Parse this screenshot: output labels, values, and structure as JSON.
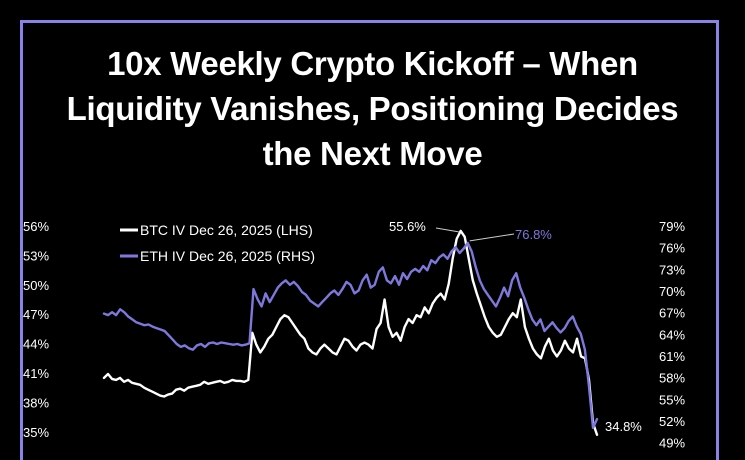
{
  "title": "10x Weekly Crypto Kickoff – When Liquidity Vanishes, Positioning Decides the Next Move",
  "colors": {
    "background": "#000000",
    "frame": "#8a82e6",
    "btc": "#ffffff",
    "eth": "#7f78dc"
  },
  "chart_data": {
    "type": "line",
    "grid": false,
    "legend_position": "top-left",
    "yaxis_left": {
      "ticks": [
        "56%",
        "53%",
        "50%",
        "47%",
        "44%",
        "41%",
        "38%",
        "35%"
      ],
      "values": [
        56,
        53,
        50,
        47,
        44,
        41,
        38,
        35
      ]
    },
    "yaxis_right": {
      "ticks": [
        "79%",
        "76%",
        "73%",
        "70%",
        "67%",
        "64%",
        "61%",
        "58%",
        "55%",
        "52%",
        "49%"
      ],
      "values": [
        79,
        76,
        73,
        70,
        67,
        64,
        61,
        58,
        55,
        52,
        49
      ]
    },
    "series": [
      {
        "name": "BTC IV Dec 26, 2025 (LHS)",
        "axis": "left",
        "values": [
          40.6,
          41.0,
          40.5,
          40.4,
          40.6,
          40.2,
          40.4,
          40.1,
          40.0,
          39.9,
          39.6,
          39.4,
          39.2,
          39.0,
          38.8,
          38.7,
          38.9,
          39.0,
          39.4,
          39.5,
          39.3,
          39.6,
          39.7,
          39.8,
          39.9,
          40.2,
          40.0,
          40.1,
          40.2,
          40.3,
          40.1,
          40.2,
          40.4,
          40.3,
          40.3,
          40.2,
          40.4,
          45.2,
          44.0,
          43.2,
          43.8,
          44.6,
          45.0,
          45.8,
          46.6,
          47.0,
          46.8,
          46.2,
          45.6,
          45.0,
          44.6,
          43.6,
          43.2,
          43.0,
          43.6,
          44.0,
          43.6,
          43.2,
          43.0,
          43.8,
          44.6,
          44.4,
          43.8,
          43.4,
          44.0,
          44.2,
          44.0,
          43.6,
          45.6,
          46.2,
          48.6,
          45.8,
          44.8,
          45.2,
          44.4,
          45.8,
          46.6,
          46.2,
          47.0,
          46.8,
          47.8,
          47.2,
          48.2,
          48.8,
          49.2,
          48.6,
          50.2,
          52.8,
          54.8,
          55.6,
          55.0,
          52.8,
          50.6,
          49.2,
          48.0,
          46.8,
          45.8,
          45.2,
          44.8,
          45.0,
          45.8,
          46.6,
          47.2,
          46.8,
          48.6,
          45.8,
          44.6,
          43.6,
          43.0,
          42.6,
          43.8,
          44.6,
          43.4,
          42.8,
          43.4,
          44.4,
          43.6,
          43.2,
          44.6,
          42.8,
          42.6,
          40.4,
          36.0,
          34.8
        ]
      },
      {
        "name": "ETH IV Dec 26, 2025 (RHS)",
        "axis": "right",
        "values": [
          67.0,
          66.8,
          67.2,
          66.8,
          67.6,
          67.2,
          66.6,
          66.2,
          65.8,
          65.6,
          65.4,
          65.5,
          65.2,
          65.0,
          64.8,
          64.6,
          64.0,
          63.4,
          62.8,
          62.4,
          62.6,
          62.2,
          62.0,
          62.6,
          62.8,
          62.4,
          62.9,
          63.0,
          62.8,
          63.0,
          62.9,
          62.8,
          62.7,
          62.8,
          62.6,
          62.7,
          62.9,
          70.4,
          69.0,
          68.0,
          69.8,
          68.6,
          69.6,
          70.6,
          71.2,
          71.6,
          71.0,
          71.4,
          70.8,
          70.0,
          69.6,
          68.8,
          68.4,
          68.0,
          68.6,
          69.2,
          69.8,
          70.2,
          69.6,
          70.4,
          71.4,
          71.0,
          69.8,
          70.2,
          71.6,
          72.4,
          70.6,
          71.0,
          72.8,
          73.4,
          71.6,
          71.2,
          72.2,
          71.0,
          72.6,
          71.8,
          72.8,
          73.2,
          72.8,
          73.6,
          73.0,
          74.4,
          74.0,
          74.8,
          75.2,
          74.6,
          75.6,
          76.2,
          75.4,
          76.0,
          76.8,
          75.6,
          73.4,
          71.6,
          70.4,
          69.6,
          68.8,
          68.0,
          69.2,
          70.6,
          69.4,
          71.6,
          72.6,
          70.6,
          69.2,
          67.6,
          66.2,
          65.4,
          66.2,
          64.6,
          65.2,
          65.8,
          65.0,
          64.4,
          65.0,
          66.0,
          66.6,
          65.2,
          64.2,
          62.0,
          57.0,
          51.2,
          52.4
        ]
      }
    ],
    "annotations": [
      {
        "text": "55.6%",
        "series": 0,
        "index": 89
      },
      {
        "text": "76.8%",
        "series": 1,
        "index": 90
      },
      {
        "text": "34.8%",
        "series": 0,
        "index": 123
      }
    ]
  }
}
